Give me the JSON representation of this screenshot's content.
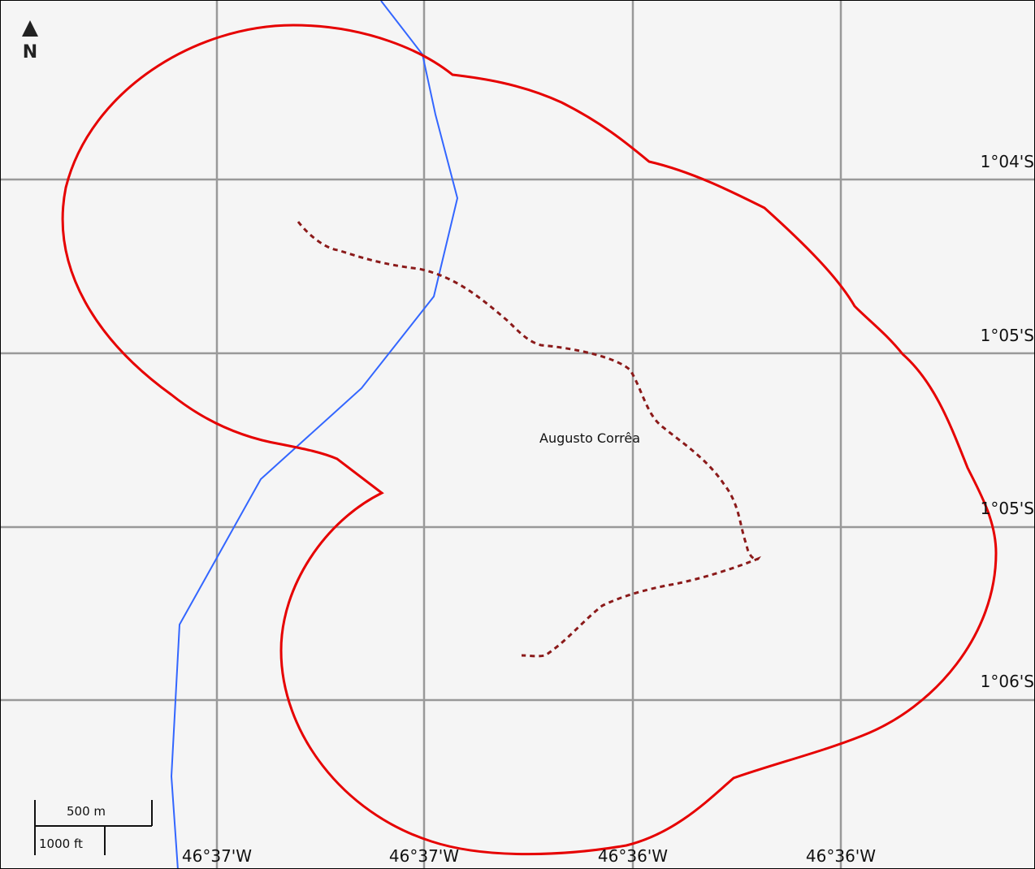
{
  "map": {
    "place_name": "Augusto Corrêa",
    "north_label": "N",
    "latitude_labels": [
      "1°04'S",
      "1°05'S",
      "1°05'S",
      "1°06'S"
    ],
    "longitude_labels": [
      "46°37'W",
      "46°37'W",
      "46°36'W",
      "46°36'W"
    ],
    "scale_bar": {
      "metric_label": "500 m",
      "imperial_label": "1000 ft"
    },
    "colors": {
      "background": "#f5f5f5",
      "grid": "#999999",
      "boundary": "#e60000",
      "river": "#3366ff",
      "road": "#8b1a1a"
    },
    "layers": {
      "boundary": "municipal-boundary",
      "river": "river-line",
      "road": "dashed-road"
    }
  }
}
